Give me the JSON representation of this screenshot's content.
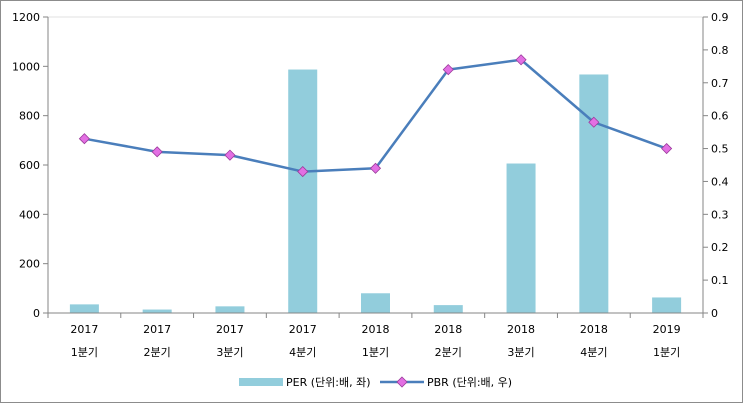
{
  "chart_data": {
    "type": "bar+line",
    "categories": [
      [
        "2017",
        "1분기"
      ],
      [
        "2017",
        "2분기"
      ],
      [
        "2017",
        "3분기"
      ],
      [
        "2017",
        "4분기"
      ],
      [
        "2018",
        "1분기"
      ],
      [
        "2018",
        "2분기"
      ],
      [
        "2018",
        "3분기"
      ],
      [
        "2018",
        "4분기"
      ],
      [
        "2019",
        "1분기"
      ]
    ],
    "series": [
      {
        "name": "PER (단위:배, 좌)",
        "type": "bar",
        "axis": "left",
        "color": "#92cddc",
        "values": [
          35,
          14,
          27,
          987,
          80,
          32,
          606,
          967,
          63
        ]
      },
      {
        "name": "PBR (단위:배, 우)",
        "type": "line",
        "axis": "right",
        "color": "#4a7ebb",
        "marker_color": "#e36fe3",
        "values": [
          0.53,
          0.49,
          0.48,
          0.43,
          0.44,
          0.74,
          0.77,
          0.58,
          0.5
        ]
      }
    ],
    "y_left": {
      "min": 0,
      "max": 1200,
      "ticks": [
        "0",
        "200",
        "400",
        "600",
        "800",
        "1000",
        "1200"
      ]
    },
    "y_right": {
      "min": 0,
      "max": 0.9,
      "ticks": [
        "0",
        "0.1",
        "0.2",
        "0.3",
        "0.4",
        "0.5",
        "0.6",
        "0.7",
        "0.8",
        "0.9"
      ]
    },
    "grid": false,
    "legend_position": "bottom"
  }
}
